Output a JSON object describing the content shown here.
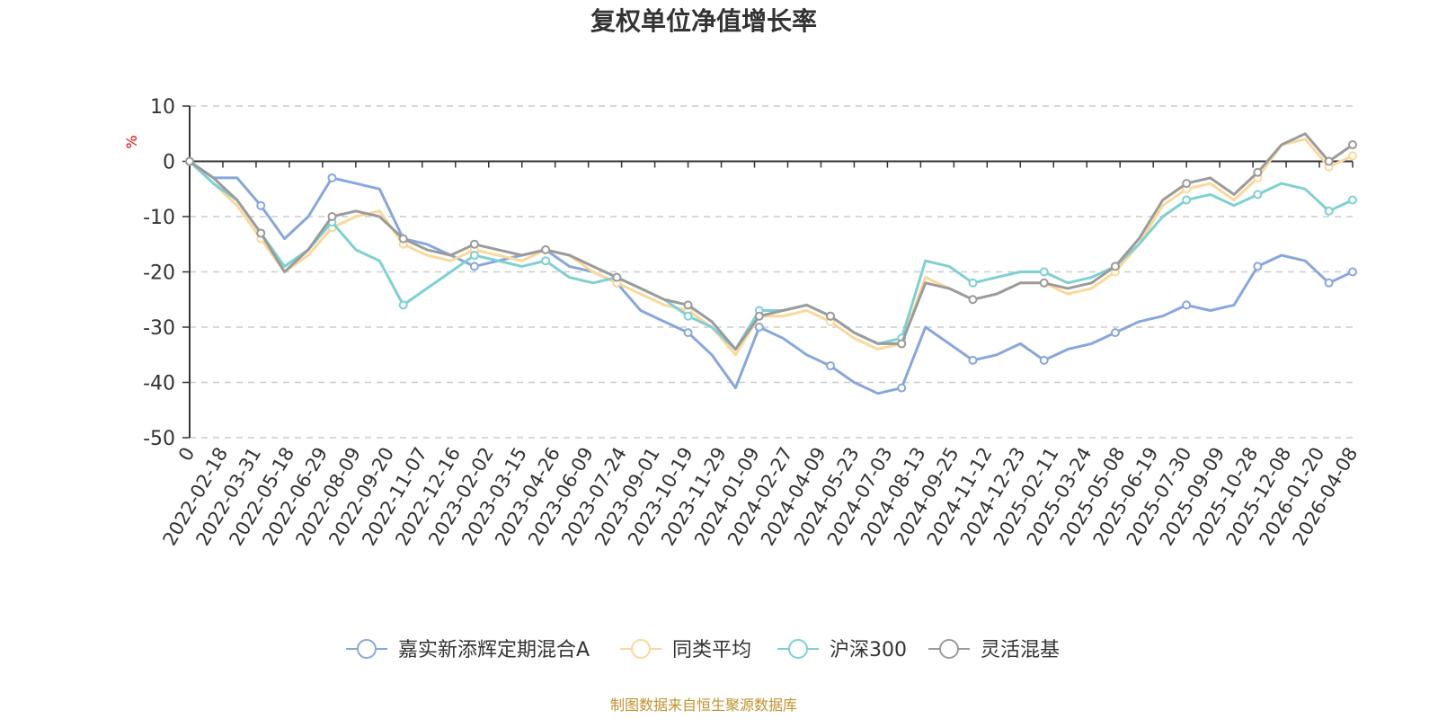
{
  "chart_data": {
    "type": "line",
    "title": "复权单位净值增长率",
    "ylabel": "%",
    "ylim": [
      -50,
      10
    ],
    "yticks": [
      10,
      0,
      -10,
      -20,
      -30,
      -40,
      -50
    ],
    "x_labels": [
      "0",
      "2022-02-18",
      "2022-03-31",
      "2022-05-18",
      "2022-06-29",
      "2022-08-09",
      "2022-09-20",
      "2022-11-07",
      "2022-12-16",
      "2023-02-02",
      "2023-03-15",
      "2023-04-26",
      "2023-06-09",
      "2023-07-24",
      "2023-09-01",
      "2023-10-19",
      "2023-11-29",
      "2024-01-09",
      "2024-02-27",
      "2024-04-09",
      "2024-05-23",
      "2024-07-03",
      "2024-08-13",
      "2024-09-25",
      "2024-11-12",
      "2024-12-23",
      "2025-02-11",
      "2025-03-24",
      "2025-05-08",
      "2025-06-19",
      "2025-07-30",
      "2025-09-09",
      "2025-10-28",
      "2025-12-08",
      "2026-01-20",
      "2026-04-08"
    ],
    "series": [
      {
        "name": "嘉实新添辉定期混合A",
        "color": "#87a7dc",
        "values": [
          0,
          -3,
          -3,
          -8,
          -14,
          -10,
          -3,
          -4,
          -5,
          -14,
          -15,
          -17,
          -19,
          -18,
          -17,
          -16,
          -19,
          -20,
          -22,
          -27,
          -29,
          -31,
          -35,
          -41,
          -30,
          -32,
          -35,
          -37,
          -40,
          -42,
          -41,
          -30,
          -33,
          -36,
          -35,
          -33,
          -36,
          -34,
          -33,
          -31,
          -29,
          -28,
          -26,
          -27,
          -26,
          -19,
          -17,
          -18,
          -22,
          -20
        ]
      },
      {
        "name": "同类平均",
        "color": "#fbd89a",
        "values": [
          0,
          -4,
          -8,
          -14,
          -20,
          -17,
          -12,
          -10,
          -9,
          -15,
          -17,
          -18,
          -16,
          -17,
          -18,
          -16,
          -17,
          -20,
          -22,
          -24,
          -26,
          -27,
          -30,
          -35,
          -28,
          -28,
          -27,
          -29,
          -32,
          -34,
          -33,
          -21,
          -23,
          -25,
          -24,
          -22,
          -22,
          -24,
          -23,
          -20,
          -15,
          -8,
          -5,
          -4,
          -7,
          -3,
          3,
          4,
          -1,
          1
        ]
      },
      {
        "name": "沪深300",
        "color": "#7ed0d3",
        "values": [
          0,
          -4,
          -7,
          -13,
          -19,
          -16,
          -11,
          -16,
          -18,
          -26,
          -23,
          -20,
          -17,
          -18,
          -19,
          -18,
          -21,
          -22,
          -21,
          -23,
          -25,
          -28,
          -30,
          -34,
          -27,
          -27,
          -26,
          -28,
          -31,
          -33,
          -32,
          -18,
          -19,
          -22,
          -21,
          -20,
          -20,
          -22,
          -21,
          -19,
          -15,
          -10,
          -7,
          -6,
          -8,
          -6,
          -4,
          -5,
          -9,
          -7
        ]
      },
      {
        "name": "灵活混基",
        "color": "#9b9b9b",
        "values": [
          0,
          -3,
          -7,
          -13,
          -20,
          -16,
          -10,
          -9,
          -10,
          -14,
          -16,
          -17,
          -15,
          -16,
          -17,
          -16,
          -17,
          -19,
          -21,
          -23,
          -25,
          -26,
          -29,
          -34,
          -28,
          -27,
          -26,
          -28,
          -31,
          -33,
          -33,
          -22,
          -23,
          -25,
          -24,
          -22,
          -22,
          -23,
          -22,
          -19,
          -14,
          -7,
          -4,
          -3,
          -6,
          -2,
          3,
          5,
          0,
          3
        ]
      }
    ],
    "legend_position": "bottom-center",
    "grid": true
  },
  "footer": {
    "source": "制图数据来自恒生聚源数据库"
  }
}
